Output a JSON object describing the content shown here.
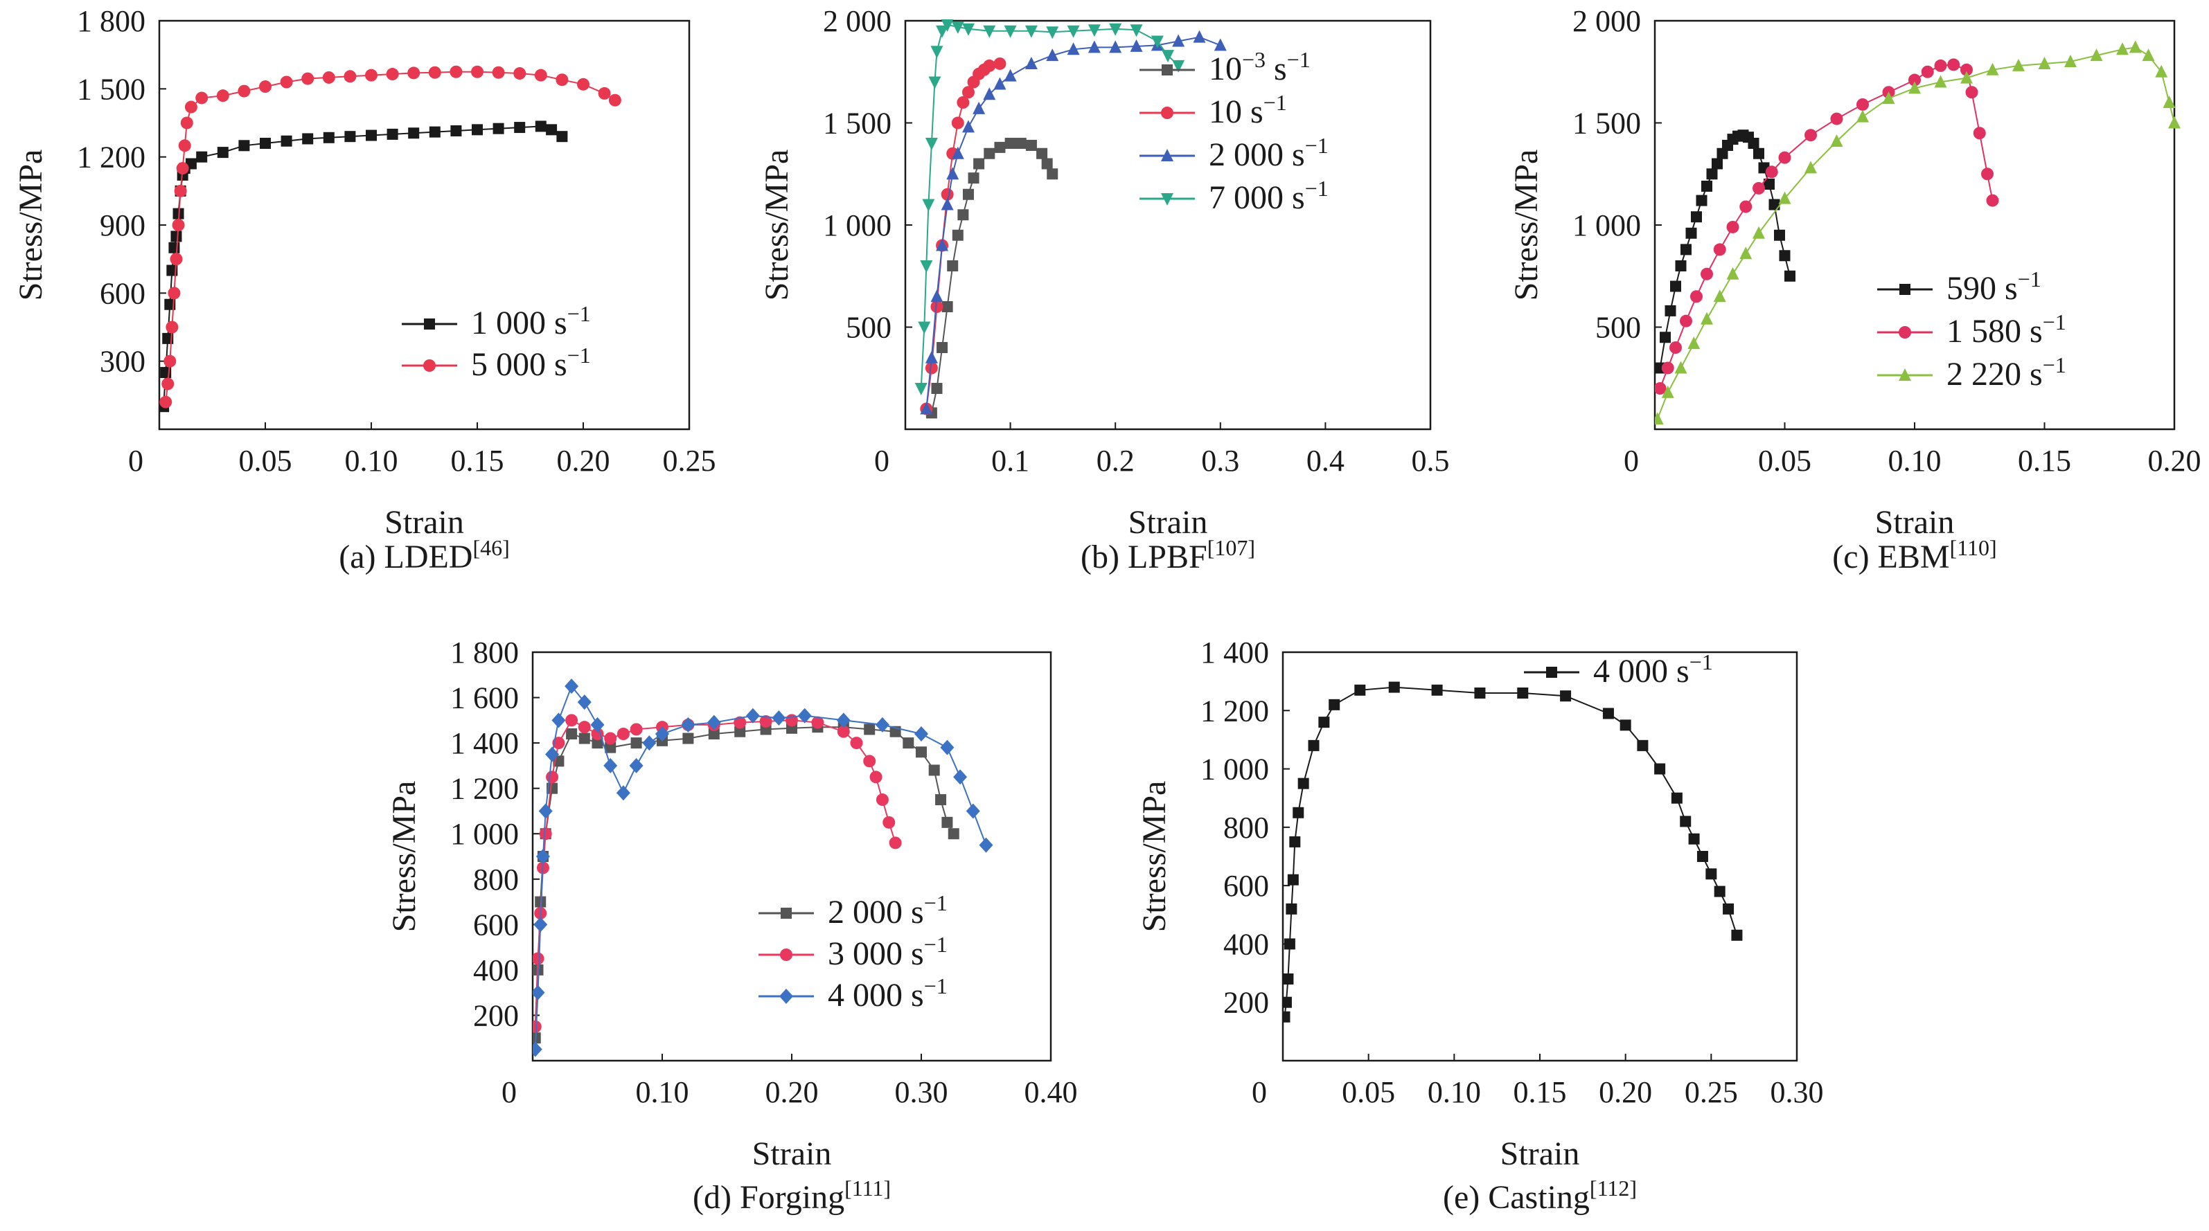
{
  "figure_meta": {
    "tick_font": "serif",
    "axis_color": "#1a1a1a"
  },
  "chart_data": [
    {
      "id": "a",
      "type": "line",
      "caption": "(a) LDED",
      "caption_ref": "[46]",
      "xlabel": "Strain",
      "ylabel": "Stress/MPa",
      "xlim": [
        0,
        0.25
      ],
      "ylim": [
        0,
        1800
      ],
      "xticks": [
        0,
        0.05,
        0.1,
        0.15,
        0.2,
        0.25
      ],
      "xtick_labels": [
        "0",
        "0.05",
        "0.10",
        "0.15",
        "0.20",
        "0.25"
      ],
      "yticks": [
        300,
        600,
        900,
        1200,
        1500,
        1800
      ],
      "ytick_labels": [
        "300",
        "600",
        "900",
        "1 200",
        "1 500",
        "1 800"
      ],
      "legend": "bottom-right",
      "series": [
        {
          "name": "1 000 s",
          "sup": "−1",
          "color": "#1a1a1a",
          "marker": "square",
          "x": [
            0.002,
            0.003,
            0.004,
            0.005,
            0.006,
            0.007,
            0.008,
            0.009,
            0.01,
            0.011,
            0.012,
            0.015,
            0.02,
            0.03,
            0.04,
            0.05,
            0.06,
            0.07,
            0.08,
            0.09,
            0.1,
            0.11,
            0.12,
            0.13,
            0.14,
            0.15,
            0.16,
            0.17,
            0.18,
            0.185,
            0.19
          ],
          "y": [
            100,
            250,
            400,
            550,
            700,
            800,
            850,
            950,
            1050,
            1120,
            1150,
            1170,
            1200,
            1220,
            1250,
            1260,
            1270,
            1280,
            1285,
            1290,
            1295,
            1300,
            1305,
            1310,
            1315,
            1320,
            1325,
            1330,
            1335,
            1320,
            1290
          ]
        },
        {
          "name": "5 000 s",
          "sup": "−1",
          "color": "#e8384f",
          "marker": "circle",
          "x": [
            0.003,
            0.004,
            0.005,
            0.006,
            0.007,
            0.008,
            0.009,
            0.01,
            0.011,
            0.012,
            0.013,
            0.015,
            0.02,
            0.03,
            0.04,
            0.05,
            0.06,
            0.07,
            0.08,
            0.09,
            0.1,
            0.11,
            0.12,
            0.13,
            0.14,
            0.15,
            0.16,
            0.17,
            0.18,
            0.19,
            0.2,
            0.21,
            0.215
          ],
          "y": [
            120,
            200,
            300,
            450,
            600,
            750,
            900,
            1050,
            1150,
            1250,
            1350,
            1420,
            1460,
            1470,
            1490,
            1510,
            1530,
            1545,
            1550,
            1555,
            1560,
            1565,
            1570,
            1572,
            1575,
            1575,
            1572,
            1568,
            1560,
            1540,
            1520,
            1480,
            1450
          ]
        }
      ]
    },
    {
      "id": "b",
      "type": "line",
      "caption": "(b) LPBF",
      "caption_ref": "[107]",
      "xlabel": "Strain",
      "ylabel": "Stress/MPa",
      "xlim": [
        0,
        0.5
      ],
      "ylim": [
        0,
        2000
      ],
      "xticks": [
        0,
        0.1,
        0.2,
        0.3,
        0.4,
        0.5
      ],
      "xtick_labels": [
        "0",
        "0.1",
        "0.2",
        "0.3",
        "0.4",
        "0.5"
      ],
      "yticks": [
        500,
        1000,
        1500,
        2000
      ],
      "ytick_labels": [
        "500",
        "1 000",
        "1 500",
        "2 000"
      ],
      "legend": "top-right",
      "series": [
        {
          "name": "10",
          "sup": "−3",
          "suffix": " s",
          "suffix_sup": "−1",
          "color": "#555555",
          "marker": "square",
          "x": [
            0.025,
            0.03,
            0.035,
            0.04,
            0.045,
            0.05,
            0.055,
            0.06,
            0.065,
            0.07,
            0.08,
            0.09,
            0.1,
            0.11,
            0.12,
            0.13,
            0.135,
            0.14
          ],
          "y": [
            80,
            200,
            400,
            600,
            800,
            950,
            1050,
            1150,
            1230,
            1300,
            1350,
            1380,
            1400,
            1400,
            1390,
            1350,
            1300,
            1250
          ]
        },
        {
          "name": "10 s",
          "sup": "−1",
          "color": "#e8384f",
          "marker": "circle",
          "x": [
            0.02,
            0.025,
            0.03,
            0.035,
            0.04,
            0.045,
            0.05,
            0.055,
            0.06,
            0.065,
            0.07,
            0.075,
            0.08,
            0.09
          ],
          "y": [
            100,
            300,
            600,
            900,
            1150,
            1350,
            1500,
            1600,
            1650,
            1700,
            1740,
            1760,
            1780,
            1790
          ]
        },
        {
          "name": "2 000 s",
          "sup": "−1",
          "color": "#3e5fb8",
          "marker": "triangle-up",
          "x": [
            0.02,
            0.025,
            0.03,
            0.035,
            0.04,
            0.045,
            0.05,
            0.06,
            0.07,
            0.08,
            0.09,
            0.1,
            0.12,
            0.14,
            0.16,
            0.18,
            0.2,
            0.22,
            0.24,
            0.26,
            0.28,
            0.3
          ],
          "y": [
            100,
            350,
            650,
            900,
            1100,
            1250,
            1350,
            1480,
            1570,
            1640,
            1690,
            1730,
            1790,
            1830,
            1860,
            1870,
            1870,
            1875,
            1880,
            1900,
            1920,
            1880
          ]
        },
        {
          "name": "7 000 s",
          "sup": "−1",
          "color": "#2aa889",
          "marker": "triangle-down",
          "x": [
            0.015,
            0.018,
            0.02,
            0.022,
            0.025,
            0.028,
            0.03,
            0.035,
            0.04,
            0.05,
            0.06,
            0.08,
            0.1,
            0.12,
            0.14,
            0.16,
            0.18,
            0.2,
            0.22,
            0.24,
            0.25,
            0.26
          ],
          "y": [
            200,
            500,
            800,
            1100,
            1400,
            1700,
            1850,
            1950,
            1980,
            1970,
            1960,
            1950,
            1950,
            1950,
            1945,
            1950,
            1955,
            1960,
            1955,
            1900,
            1830,
            1780
          ]
        }
      ]
    },
    {
      "id": "c",
      "type": "line",
      "caption": "(c) EBM",
      "caption_ref": "[110]",
      "xlabel": "Strain",
      "ylabel": "Stress/MPa",
      "xlim": [
        0,
        0.2
      ],
      "ylim": [
        0,
        2000
      ],
      "xticks": [
        0,
        0.05,
        0.1,
        0.15,
        0.2
      ],
      "xtick_labels": [
        "0",
        "0.05",
        "0.10",
        "0.15",
        "0.20"
      ],
      "yticks": [
        500,
        1000,
        1500,
        2000
      ],
      "ytick_labels": [
        "500",
        "1 000",
        "1 500",
        "2 000"
      ],
      "legend": "center-right",
      "series": [
        {
          "name": "590 s",
          "sup": "−1",
          "color": "#1a1a1a",
          "marker": "square",
          "x": [
            0.002,
            0.004,
            0.006,
            0.008,
            0.01,
            0.012,
            0.014,
            0.016,
            0.018,
            0.02,
            0.022,
            0.024,
            0.026,
            0.028,
            0.03,
            0.032,
            0.034,
            0.036,
            0.038,
            0.04,
            0.042,
            0.044,
            0.046,
            0.048,
            0.05,
            0.052
          ],
          "y": [
            300,
            450,
            580,
            700,
            800,
            880,
            960,
            1040,
            1120,
            1190,
            1250,
            1300,
            1350,
            1390,
            1420,
            1435,
            1440,
            1430,
            1400,
            1350,
            1280,
            1200,
            1100,
            950,
            850,
            750
          ]
        },
        {
          "name": "1 580 s",
          "sup": "−1",
          "color": "#e0305f",
          "marker": "circle",
          "x": [
            0.002,
            0.005,
            0.008,
            0.012,
            0.016,
            0.02,
            0.025,
            0.03,
            0.035,
            0.04,
            0.045,
            0.05,
            0.06,
            0.07,
            0.08,
            0.09,
            0.1,
            0.105,
            0.11,
            0.115,
            0.12,
            0.122,
            0.125,
            0.128,
            0.13
          ],
          "y": [
            200,
            300,
            400,
            530,
            650,
            760,
            880,
            990,
            1090,
            1180,
            1260,
            1330,
            1440,
            1520,
            1590,
            1650,
            1710,
            1750,
            1780,
            1785,
            1760,
            1650,
            1450,
            1250,
            1120
          ]
        },
        {
          "name": "2 220 s",
          "sup": "−1",
          "color": "#8bbf3f",
          "marker": "triangle-up",
          "x": [
            0.001,
            0.005,
            0.01,
            0.015,
            0.02,
            0.025,
            0.03,
            0.035,
            0.04,
            0.05,
            0.06,
            0.07,
            0.08,
            0.09,
            0.1,
            0.11,
            0.12,
            0.13,
            0.14,
            0.15,
            0.16,
            0.17,
            0.18,
            0.185,
            0.19,
            0.195,
            0.198,
            0.2
          ],
          "y": [
            50,
            180,
            300,
            420,
            540,
            650,
            760,
            860,
            960,
            1130,
            1280,
            1410,
            1530,
            1620,
            1670,
            1700,
            1720,
            1760,
            1780,
            1790,
            1800,
            1830,
            1860,
            1870,
            1830,
            1750,
            1600,
            1500
          ]
        }
      ]
    },
    {
      "id": "d",
      "type": "line",
      "caption": "(d) Forging",
      "caption_ref": "[111]",
      "xlabel": "Strain",
      "ylabel": "Stress/MPa",
      "xlim": [
        0,
        0.4
      ],
      "ylim": [
        0,
        1800
      ],
      "xticks": [
        0,
        0.1,
        0.2,
        0.3,
        0.4
      ],
      "xtick_labels": [
        "0",
        "0.10",
        "0.20",
        "0.30",
        "0.40"
      ],
      "yticks": [
        200,
        400,
        600,
        800,
        1000,
        1200,
        1400,
        1600,
        1800
      ],
      "ytick_labels": [
        "200",
        "400",
        "600",
        "800",
        "1 000",
        "1 200",
        "1 400",
        "1 600",
        "1 800"
      ],
      "legend": "bottom-right",
      "series": [
        {
          "name": "2 000 s",
          "sup": "−1",
          "color": "#555555",
          "marker": "square",
          "x": [
            0.002,
            0.004,
            0.006,
            0.008,
            0.01,
            0.015,
            0.02,
            0.03,
            0.04,
            0.05,
            0.06,
            0.08,
            0.1,
            0.12,
            0.14,
            0.16,
            0.18,
            0.2,
            0.22,
            0.24,
            0.26,
            0.28,
            0.29,
            0.3,
            0.31,
            0.315,
            0.32,
            0.325
          ],
          "y": [
            100,
            400,
            700,
            900,
            1000,
            1200,
            1320,
            1440,
            1420,
            1400,
            1380,
            1400,
            1410,
            1420,
            1440,
            1450,
            1460,
            1465,
            1470,
            1470,
            1460,
            1450,
            1400,
            1360,
            1280,
            1150,
            1050,
            1000
          ]
        },
        {
          "name": "3 000 s",
          "sup": "−1",
          "color": "#e8385e",
          "marker": "circle",
          "x": [
            0.002,
            0.004,
            0.006,
            0.008,
            0.01,
            0.015,
            0.02,
            0.03,
            0.04,
            0.05,
            0.06,
            0.07,
            0.08,
            0.1,
            0.12,
            0.14,
            0.16,
            0.18,
            0.2,
            0.22,
            0.24,
            0.25,
            0.26,
            0.265,
            0.27,
            0.275,
            0.28
          ],
          "y": [
            150,
            450,
            650,
            850,
            1000,
            1250,
            1400,
            1500,
            1470,
            1440,
            1420,
            1440,
            1460,
            1470,
            1480,
            1480,
            1490,
            1495,
            1500,
            1490,
            1450,
            1400,
            1320,
            1250,
            1150,
            1050,
            960
          ]
        },
        {
          "name": "4 000 s",
          "sup": "−1",
          "color": "#3c72c4",
          "marker": "diamond",
          "x": [
            0.002,
            0.004,
            0.006,
            0.008,
            0.01,
            0.015,
            0.02,
            0.03,
            0.04,
            0.05,
            0.06,
            0.07,
            0.08,
            0.09,
            0.1,
            0.12,
            0.14,
            0.17,
            0.19,
            0.21,
            0.24,
            0.27,
            0.3,
            0.32,
            0.33,
            0.34,
            0.35
          ],
          "y": [
            50,
            300,
            600,
            900,
            1100,
            1350,
            1500,
            1650,
            1580,
            1480,
            1300,
            1180,
            1300,
            1400,
            1440,
            1480,
            1490,
            1520,
            1510,
            1520,
            1500,
            1480,
            1440,
            1380,
            1250,
            1100,
            950
          ]
        }
      ]
    },
    {
      "id": "e",
      "type": "line",
      "caption": "(e) Casting",
      "caption_ref": "[112]",
      "xlabel": "Strain",
      "ylabel": "Stress/MPa",
      "xlim": [
        0,
        0.3
      ],
      "ylim": [
        0,
        1400
      ],
      "xticks": [
        0,
        0.05,
        0.1,
        0.15,
        0.2,
        0.25,
        0.3
      ],
      "xtick_labels": [
        "0",
        "0.05",
        "0.10",
        "0.15",
        "0.20",
        "0.25",
        "0.30"
      ],
      "yticks": [
        200,
        400,
        600,
        800,
        1000,
        1200,
        1400
      ],
      "ytick_labels": [
        "200",
        "400",
        "600",
        "800",
        "1 000",
        "1 200",
        "1 400"
      ],
      "legend": "top-right",
      "series": [
        {
          "name": "4 000 s",
          "sup": "−1",
          "color": "#1a1a1a",
          "marker": "square",
          "x": [
            0.001,
            0.002,
            0.003,
            0.004,
            0.005,
            0.006,
            0.007,
            0.009,
            0.012,
            0.018,
            0.024,
            0.03,
            0.045,
            0.065,
            0.09,
            0.115,
            0.14,
            0.165,
            0.19,
            0.2,
            0.21,
            0.22,
            0.23,
            0.235,
            0.24,
            0.245,
            0.25,
            0.255,
            0.26,
            0.265
          ],
          "y": [
            150,
            200,
            280,
            400,
            520,
            620,
            750,
            850,
            950,
            1080,
            1160,
            1220,
            1270,
            1280,
            1270,
            1260,
            1260,
            1250,
            1190,
            1150,
            1080,
            1000,
            900,
            820,
            760,
            700,
            640,
            580,
            520,
            430
          ]
        }
      ]
    }
  ]
}
